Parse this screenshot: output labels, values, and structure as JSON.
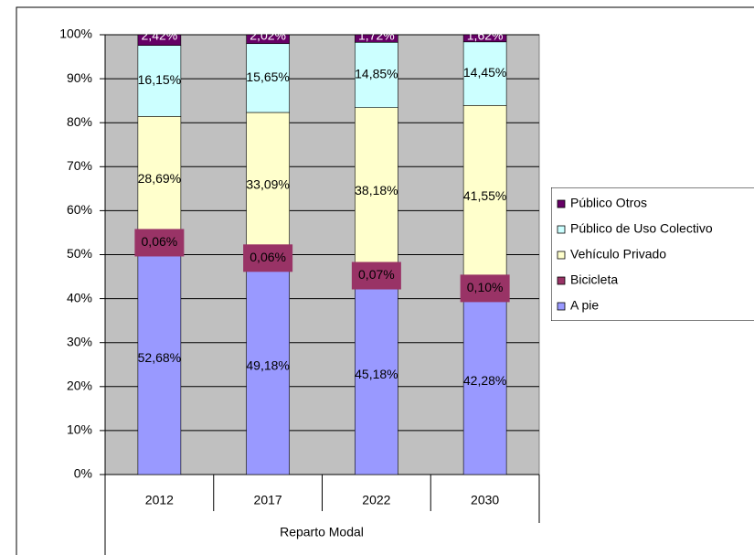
{
  "chart_data": {
    "type": "stacked_bar",
    "categories": [
      "2012",
      "2017",
      "2022",
      "2030"
    ],
    "xlabel": "Reparto Modal",
    "series": [
      {
        "name": "A pie",
        "color": "#9999ff",
        "values": [
          52.68,
          49.18,
          45.18,
          42.28
        ],
        "value_labels": [
          "52,68%",
          "49,18%",
          "45,18%",
          "42,28%"
        ]
      },
      {
        "name": "Bicicleta",
        "color": "#993366",
        "values": [
          0.06,
          0.06,
          0.07,
          0.1
        ],
        "value_labels": [
          "0,06%",
          "0,06%",
          "0,07%",
          "0,10%"
        ]
      },
      {
        "name": "Vehículo Privado",
        "color": "#ffffcc",
        "values": [
          28.69,
          33.09,
          38.18,
          41.55
        ],
        "value_labels": [
          "28,69%",
          "33,09%",
          "38,18%",
          "41,55%"
        ]
      },
      {
        "name": "Público de Uso Colectivo",
        "color": "#ccffff",
        "values": [
          16.15,
          15.65,
          14.85,
          14.45
        ],
        "value_labels": [
          "16,15%",
          "15,65%",
          "14,85%",
          "14,45%"
        ]
      },
      {
        "name": "Público Otros",
        "color": "#660066",
        "values": [
          2.42,
          2.02,
          1.72,
          1.62
        ],
        "value_labels": [
          "2,42%",
          "2,02%",
          "1,72%",
          "1,62%"
        ]
      }
    ],
    "ylim": [
      0,
      100
    ],
    "yticks": [
      {
        "value": 0,
        "label": "0%"
      },
      {
        "value": 10,
        "label": "10%"
      },
      {
        "value": 20,
        "label": "20%"
      },
      {
        "value": 30,
        "label": "30%"
      },
      {
        "value": 40,
        "label": "40%"
      },
      {
        "value": 50,
        "label": "50%"
      },
      {
        "value": 60,
        "label": "60%"
      },
      {
        "value": 70,
        "label": "70%"
      },
      {
        "value": 80,
        "label": "80%"
      },
      {
        "value": 90,
        "label": "90%"
      },
      {
        "value": 100,
        "label": "100%"
      }
    ],
    "grid": true,
    "legend": "right"
  }
}
